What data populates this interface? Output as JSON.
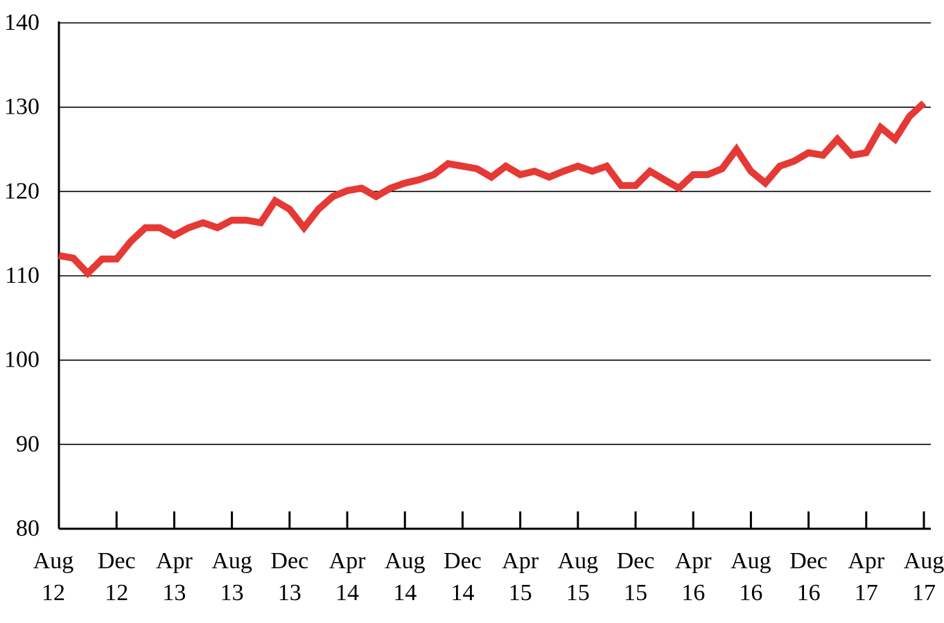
{
  "chart_data": {
    "type": "line",
    "title": "",
    "xlabel": "",
    "ylabel": "",
    "ylim": [
      80,
      140
    ],
    "yticks": [
      "80",
      "90",
      "100",
      "110",
      "120",
      "130",
      "140"
    ],
    "grid": true,
    "legend": "none",
    "x_tick_labels": [
      {
        "month": "Aug",
        "year": "12"
      },
      {
        "month": "Dec",
        "year": "12"
      },
      {
        "month": "Apr",
        "year": "13"
      },
      {
        "month": "Aug",
        "year": "13"
      },
      {
        "month": "Dec",
        "year": "13"
      },
      {
        "month": "Apr",
        "year": "14"
      },
      {
        "month": "Aug",
        "year": "14"
      },
      {
        "month": "Dec",
        "year": "14"
      },
      {
        "month": "Apr",
        "year": "15"
      },
      {
        "month": "Aug",
        "year": "15"
      },
      {
        "month": "Dec",
        "year": "15"
      },
      {
        "month": "Apr",
        "year": "16"
      },
      {
        "month": "Aug",
        "year": "16"
      },
      {
        "month": "Dec",
        "year": "16"
      },
      {
        "month": "Apr",
        "year": "17"
      },
      {
        "month": "Aug",
        "year": "17"
      }
    ],
    "x": [
      "2012-08",
      "2012-09",
      "2012-10",
      "2012-11",
      "2012-12",
      "2013-01",
      "2013-02",
      "2013-03",
      "2013-04",
      "2013-05",
      "2013-06",
      "2013-07",
      "2013-08",
      "2013-09",
      "2013-10",
      "2013-11",
      "2013-12",
      "2014-01",
      "2014-02",
      "2014-03",
      "2014-04",
      "2014-05",
      "2014-06",
      "2014-07",
      "2014-08",
      "2014-09",
      "2014-10",
      "2014-11",
      "2014-12",
      "2015-01",
      "2015-02",
      "2015-03",
      "2015-04",
      "2015-05",
      "2015-06",
      "2015-07",
      "2015-08",
      "2015-09",
      "2015-10",
      "2015-11",
      "2015-12",
      "2016-01",
      "2016-02",
      "2016-03",
      "2016-04",
      "2016-05",
      "2016-06",
      "2016-07",
      "2016-08",
      "2016-09",
      "2016-10",
      "2016-11",
      "2016-12",
      "2017-01",
      "2017-02",
      "2017-03",
      "2017-04",
      "2017-05",
      "2017-06",
      "2017-07",
      "2017-08"
    ],
    "series": [
      {
        "color": "#e53935",
        "values": [
          112.4,
          112.1,
          110.3,
          112.0,
          112.0,
          114.1,
          115.7,
          115.7,
          114.8,
          115.7,
          116.3,
          115.7,
          116.6,
          116.6,
          116.3,
          118.9,
          117.9,
          115.7,
          117.9,
          119.4,
          120.1,
          120.4,
          119.4,
          120.4,
          121.0,
          121.4,
          122.0,
          123.3,
          123.0,
          122.7,
          121.7,
          123.0,
          122.0,
          122.4,
          121.7,
          122.4,
          123.0,
          122.4,
          123.0,
          120.7,
          120.7,
          122.4,
          121.4,
          120.4,
          122.0,
          122.0,
          122.7,
          125.0,
          122.4,
          121.0,
          123.0,
          123.6,
          124.6,
          124.3,
          126.2,
          124.3,
          124.6,
          127.6,
          126.2,
          128.9,
          130.5
        ]
      }
    ]
  }
}
